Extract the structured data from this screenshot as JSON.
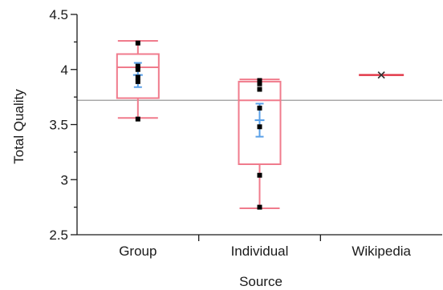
{
  "chart_data": {
    "type": "box",
    "xlabel": "Source",
    "ylabel": "Total Quality",
    "ylim": [
      2.5,
      4.5
    ],
    "yticks": [
      2.5,
      3,
      3.5,
      4,
      4.5
    ],
    "ytick_labels": [
      "2.5",
      "3",
      "3.5",
      "4",
      "4.5"
    ],
    "categories": [
      "Group",
      "Individual",
      "Wikipedia"
    ],
    "reference_line": 3.72,
    "groups": [
      {
        "category": "Group",
        "whisker_low": 3.56,
        "q1": 3.74,
        "median": 4.02,
        "q3": 4.14,
        "whisker_high": 4.26,
        "points": [
          4.24,
          4.03,
          4.0,
          3.93,
          3.89,
          3.55
        ],
        "mean": 3.95,
        "mean_ci": [
          3.84,
          4.06
        ]
      },
      {
        "category": "Individual",
        "whisker_low": 2.74,
        "q1": 3.14,
        "median": 3.72,
        "q3": 3.89,
        "whisker_high": 3.91,
        "points": [
          3.9,
          3.87,
          3.82,
          3.65,
          3.48,
          3.04,
          2.75
        ],
        "mean": 3.54,
        "mean_ci": [
          3.39,
          3.69
        ]
      },
      {
        "category": "Wikipedia",
        "whisker_low": 3.95,
        "q1": 3.95,
        "median": 3.95,
        "q3": 3.95,
        "whisker_high": 3.95,
        "points": [
          3.95
        ],
        "mean": 3.95
      }
    ],
    "colors": {
      "box": "#f07b8c",
      "single_line": "#e23a4a",
      "mean_bar": "#5aa0e8",
      "point": "#000000",
      "reference": "#a8a8a8",
      "axis": "#1a1a1a"
    }
  }
}
